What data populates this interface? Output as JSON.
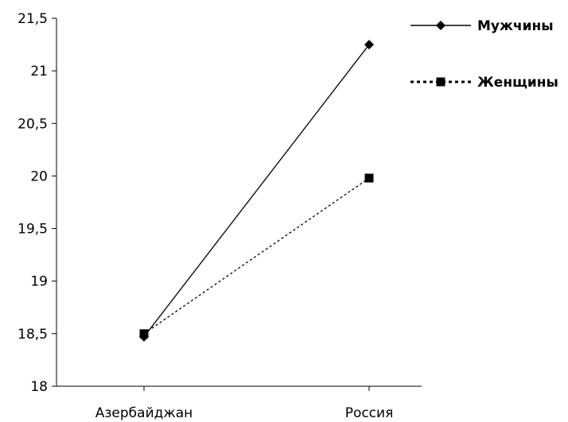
{
  "chart_data": {
    "type": "line",
    "title": "",
    "xlabel": "",
    "ylabel": "",
    "categories": [
      "Азербайджан",
      "Россия"
    ],
    "ylim": [
      18,
      21.5
    ],
    "yticks": [
      "18",
      "18,5",
      "19",
      "19,5",
      "20",
      "20,5",
      "21",
      "21,5"
    ],
    "yticks_values": [
      18,
      18.5,
      19,
      19.5,
      20,
      20.5,
      21,
      21.5
    ],
    "grid": false,
    "legend": "top-right",
    "series": [
      {
        "name": "Мужчины",
        "values": [
          18.47,
          21.25
        ],
        "marker": "diamond",
        "line": "solid",
        "color": "#000000"
      },
      {
        "name": "Женщины",
        "values": [
          18.5,
          19.98
        ],
        "marker": "square",
        "line": "dotted",
        "color": "#000000"
      }
    ]
  }
}
